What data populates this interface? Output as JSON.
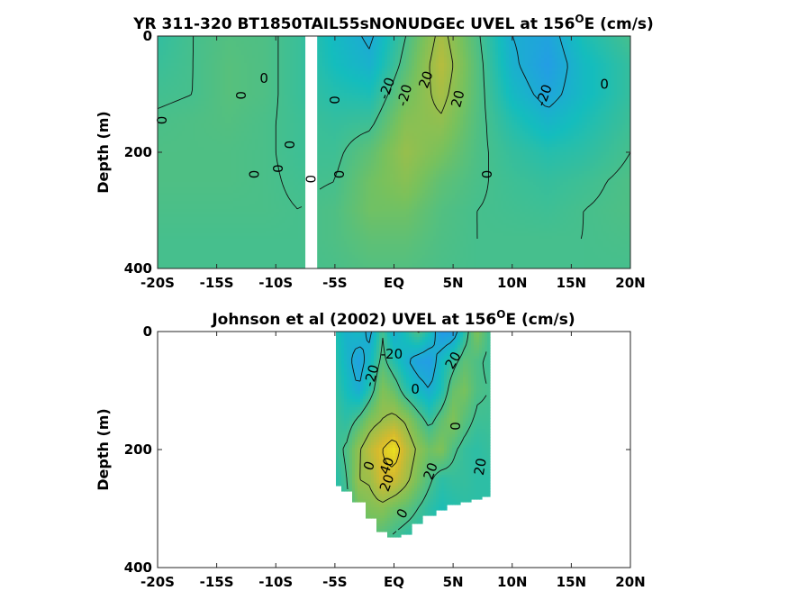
{
  "chart_data": [
    {
      "type": "heatmap",
      "subtype": "filled-contour",
      "title_prefix": "YR 311-320 BT1850TAIL55sNONUDGEc UVEL at 156",
      "title_sup": "O",
      "title_suffix": "E (cm/s)",
      "xlabel": "",
      "ylabel": "Depth (m)",
      "x_ticks": [
        -20,
        -15,
        -10,
        -5,
        0,
        5,
        10,
        15,
        20
      ],
      "x_tick_labels": [
        "-20S",
        "-15S",
        "-10S",
        "-5S",
        "EQ",
        "5N",
        "10N",
        "15N",
        "20N"
      ],
      "y_ticks": [
        0,
        200,
        400
      ],
      "y_tick_labels": [
        "0",
        "200",
        "400"
      ],
      "xlim": [
        -20,
        20
      ],
      "ylim": [
        400,
        0
      ],
      "y_reversed": true,
      "missing_x_band": [
        -7.5,
        -6.5
      ],
      "grid": "x,y lattice",
      "lat_points": [
        -20,
        -17,
        -14,
        -11,
        -8,
        -5,
        -2,
        1,
        4,
        7,
        10,
        13,
        16,
        20
      ],
      "depth_points": [
        0,
        50,
        100,
        150,
        200,
        250,
        300,
        350,
        400
      ],
      "values": [
        [
          -5,
          0,
          3,
          2,
          -3,
          -14,
          -22,
          0,
          24,
          2,
          -20,
          -25,
          -10,
          0
        ],
        [
          -3,
          0,
          4,
          2,
          -3,
          -12,
          -18,
          4,
          28,
          4,
          -18,
          -28,
          -14,
          -4
        ],
        [
          -1,
          0,
          4,
          2,
          -3,
          -8,
          -10,
          10,
          24,
          4,
          -14,
          -24,
          -14,
          -4
        ],
        [
          1,
          2,
          3,
          1,
          -2,
          -4,
          -2,
          16,
          18,
          3,
          -8,
          -16,
          -10,
          -2
        ],
        [
          2,
          2,
          2,
          1,
          -2,
          -2,
          6,
          20,
          12,
          2,
          -4,
          -8,
          -6,
          0
        ],
        [
          2,
          2,
          2,
          1,
          -1,
          0,
          10,
          16,
          6,
          1,
          -2,
          -4,
          -2,
          2
        ],
        [
          1,
          1,
          1,
          1,
          0,
          2,
          10,
          10,
          3,
          0,
          -1,
          -2,
          0,
          2
        ],
        [
          0,
          0,
          0,
          0,
          0,
          2,
          6,
          6,
          2,
          0,
          0,
          0,
          0,
          1
        ],
        [
          0,
          0,
          0,
          0,
          0,
          1,
          3,
          3,
          1,
          0,
          0,
          0,
          0,
          0
        ]
      ],
      "contour_labels": [
        "0",
        "0",
        "0",
        "0",
        "0",
        "0",
        "0",
        "0",
        "0",
        "0",
        "-20",
        "-20",
        "20",
        "20",
        "-20",
        "0"
      ],
      "colormap": [
        "#3e26a8",
        "#2b8df8",
        "#14bdbd",
        "#78c15c",
        "#d6ba2d",
        "#f9fb15"
      ],
      "clim": [
        -60,
        60
      ]
    },
    {
      "type": "heatmap",
      "subtype": "filled-contour",
      "title_prefix": "Johnson et al (2002) UVEL at 156",
      "title_sup": "O",
      "title_suffix": "E (cm/s)",
      "xlabel": "",
      "ylabel": "Depth (m)",
      "x_ticks": [
        -20,
        -15,
        -10,
        -5,
        0,
        5,
        10,
        15,
        20
      ],
      "x_tick_labels": [
        "-20S",
        "-15S",
        "-10S",
        "-5S",
        "EQ",
        "5N",
        "10N",
        "15N",
        "20N"
      ],
      "y_ticks": [
        0,
        200,
        400
      ],
      "y_tick_labels": [
        "0",
        "200",
        "400"
      ],
      "xlim": [
        -20,
        20
      ],
      "ylim": [
        400,
        0
      ],
      "y_reversed": true,
      "data_x_range": [
        -5,
        8
      ],
      "bottom_depth_points": [
        [
          -5,
          262
        ],
        [
          -4,
          268
        ],
        [
          -3,
          288
        ],
        [
          -2,
          318
        ],
        [
          -1,
          338
        ],
        [
          0,
          350
        ],
        [
          1,
          342
        ],
        [
          2,
          326
        ],
        [
          3,
          312
        ],
        [
          4,
          300
        ],
        [
          5,
          292
        ],
        [
          6,
          288
        ],
        [
          7,
          282
        ],
        [
          8,
          278
        ]
      ],
      "lat_points": [
        -5,
        -4,
        -3,
        -2,
        -1,
        0,
        1,
        2,
        3,
        4,
        5,
        6,
        7,
        8
      ],
      "depth_points": [
        0,
        50,
        100,
        150,
        200,
        250,
        300,
        350
      ],
      "values": [
        [
          -8,
          -18,
          -14,
          -24,
          0,
          -20,
          -10,
          2,
          -10,
          -30,
          -28,
          -6,
          14,
          0
        ],
        [
          -6,
          -16,
          -26,
          -14,
          4,
          -8,
          -18,
          -26,
          -28,
          -14,
          -4,
          6,
          2,
          -2
        ],
        [
          -4,
          -12,
          -20,
          -6,
          14,
          8,
          -6,
          -14,
          -20,
          -10,
          8,
          12,
          2,
          0
        ],
        [
          -2,
          -6,
          2,
          14,
          20,
          24,
          18,
          6,
          -4,
          6,
          14,
          4,
          -2,
          -2
        ],
        [
          -4,
          2,
          18,
          30,
          40,
          50,
          30,
          18,
          10,
          14,
          2,
          -4,
          -6,
          -4
        ],
        [
          -8,
          0,
          20,
          22,
          36,
          34,
          24,
          12,
          2,
          -6,
          -4,
          -4,
          -6,
          -6
        ],
        [
          -6,
          -4,
          10,
          14,
          16,
          10,
          6,
          0,
          -6,
          -10,
          -8,
          -6,
          -6,
          -6
        ],
        [
          -4,
          -4,
          0,
          4,
          2,
          -2,
          -6,
          -8,
          -6,
          -4,
          -4,
          -4,
          -4,
          -4
        ]
      ],
      "contour_labels": [
        "-20",
        "0",
        "-20",
        "20",
        "0",
        "20",
        "40",
        "20",
        "20",
        "0",
        "0"
      ],
      "colormap": [
        "#3e26a8",
        "#2b8df8",
        "#14bdbd",
        "#78c15c",
        "#d6ba2d",
        "#f9fb15"
      ],
      "clim": [
        -60,
        60
      ]
    }
  ]
}
